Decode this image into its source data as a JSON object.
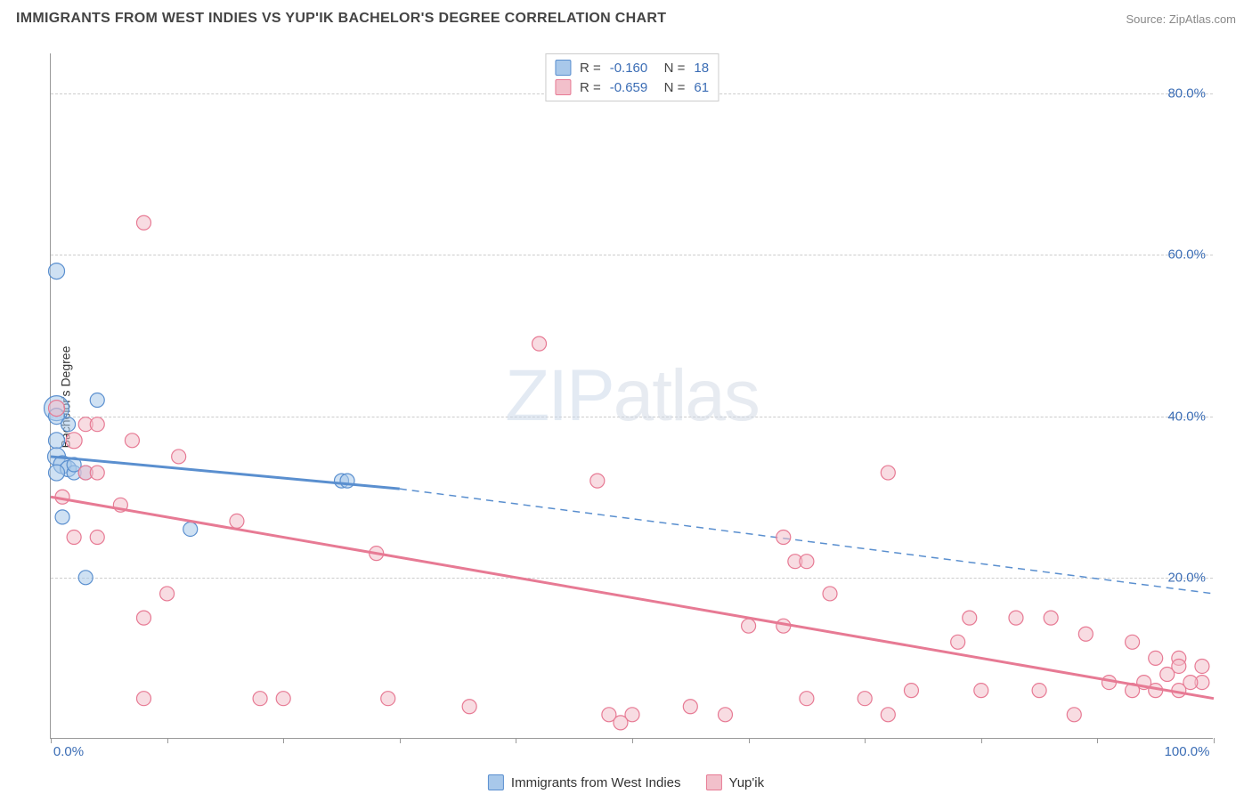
{
  "title": "IMMIGRANTS FROM WEST INDIES VS YUP'IK BACHELOR'S DEGREE CORRELATION CHART",
  "source": "Source: ZipAtlas.com",
  "watermark_bold": "ZIP",
  "watermark_thin": "atlas",
  "chart": {
    "type": "scatter",
    "ylabel": "Bachelor's Degree",
    "background_color": "#ffffff",
    "grid_color": "#cccccc",
    "axis_color": "#999999",
    "tick_color": "#3b6db5",
    "xlim": [
      0,
      100
    ],
    "ylim": [
      0,
      85
    ],
    "yticks": [
      20,
      40,
      60,
      80
    ],
    "ytick_labels": [
      "20.0%",
      "40.0%",
      "60.0%",
      "80.0%"
    ],
    "xticks_minor": [
      0,
      10,
      20,
      30,
      40,
      50,
      60,
      70,
      80,
      90,
      100
    ],
    "xtick_labels": {
      "0": "0.0%",
      "100": "100.0%"
    },
    "series": [
      {
        "name": "Immigrants from West Indies",
        "color_fill": "#a8c8ea",
        "color_stroke": "#5a8fcf",
        "marker_radius": 8,
        "R": "-0.160",
        "N": "18",
        "regression": {
          "x_start": 0,
          "y_start": 35,
          "x_end_solid": 30,
          "y_end_solid": 31,
          "x_end": 100,
          "y_end": 18,
          "stroke_width": 3
        },
        "points": [
          {
            "x": 0.5,
            "y": 58,
            "r": 9
          },
          {
            "x": 0.5,
            "y": 41,
            "r": 14
          },
          {
            "x": 0.5,
            "y": 40,
            "r": 9
          },
          {
            "x": 4,
            "y": 42,
            "r": 8
          },
          {
            "x": 1.5,
            "y": 39,
            "r": 8
          },
          {
            "x": 0.5,
            "y": 37,
            "r": 9
          },
          {
            "x": 0.5,
            "y": 35,
            "r": 10
          },
          {
            "x": 1,
            "y": 34,
            "r": 10
          },
          {
            "x": 1.5,
            "y": 33.5,
            "r": 9
          },
          {
            "x": 2,
            "y": 33,
            "r": 8
          },
          {
            "x": 3,
            "y": 33,
            "r": 8
          },
          {
            "x": 0.5,
            "y": 33,
            "r": 9
          },
          {
            "x": 1,
            "y": 27.5,
            "r": 8
          },
          {
            "x": 3,
            "y": 20,
            "r": 8
          },
          {
            "x": 12,
            "y": 26,
            "r": 8
          },
          {
            "x": 25,
            "y": 32,
            "r": 8
          },
          {
            "x": 25.5,
            "y": 32,
            "r": 8
          },
          {
            "x": 2,
            "y": 34,
            "r": 8
          }
        ]
      },
      {
        "name": "Yup'ik",
        "color_fill": "#f2c0cb",
        "color_stroke": "#e77a94",
        "marker_radius": 8,
        "R": "-0.659",
        "N": "61",
        "regression": {
          "x_start": 0,
          "y_start": 30,
          "x_end_solid": 100,
          "y_end_solid": 5,
          "x_end": 100,
          "y_end": 5,
          "stroke_width": 3
        },
        "points": [
          {
            "x": 8,
            "y": 64,
            "r": 8
          },
          {
            "x": 42,
            "y": 49,
            "r": 8
          },
          {
            "x": 0.5,
            "y": 41,
            "r": 9
          },
          {
            "x": 3,
            "y": 39,
            "r": 8
          },
          {
            "x": 4,
            "y": 39,
            "r": 8
          },
          {
            "x": 2,
            "y": 37,
            "r": 9
          },
          {
            "x": 7,
            "y": 37,
            "r": 8
          },
          {
            "x": 11,
            "y": 35,
            "r": 8
          },
          {
            "x": 3,
            "y": 33,
            "r": 8
          },
          {
            "x": 4,
            "y": 33,
            "r": 8
          },
          {
            "x": 72,
            "y": 33,
            "r": 8
          },
          {
            "x": 47,
            "y": 32,
            "r": 8
          },
          {
            "x": 1,
            "y": 30,
            "r": 8
          },
          {
            "x": 6,
            "y": 29,
            "r": 8
          },
          {
            "x": 2,
            "y": 25,
            "r": 8
          },
          {
            "x": 4,
            "y": 25,
            "r": 8
          },
          {
            "x": 16,
            "y": 27,
            "r": 8
          },
          {
            "x": 63,
            "y": 25,
            "r": 8
          },
          {
            "x": 28,
            "y": 23,
            "r": 8
          },
          {
            "x": 64,
            "y": 22,
            "r": 8
          },
          {
            "x": 65,
            "y": 22,
            "r": 8
          },
          {
            "x": 10,
            "y": 18,
            "r": 8
          },
          {
            "x": 67,
            "y": 18,
            "r": 8
          },
          {
            "x": 8,
            "y": 15,
            "r": 8
          },
          {
            "x": 60,
            "y": 14,
            "r": 8
          },
          {
            "x": 63,
            "y": 14,
            "r": 8
          },
          {
            "x": 79,
            "y": 15,
            "r": 8
          },
          {
            "x": 83,
            "y": 15,
            "r": 8
          },
          {
            "x": 86,
            "y": 15,
            "r": 8
          },
          {
            "x": 89,
            "y": 13,
            "r": 8
          },
          {
            "x": 78,
            "y": 12,
            "r": 8
          },
          {
            "x": 93,
            "y": 12,
            "r": 8
          },
          {
            "x": 97,
            "y": 10,
            "r": 8
          },
          {
            "x": 95,
            "y": 10,
            "r": 8
          },
          {
            "x": 97,
            "y": 9,
            "r": 8
          },
          {
            "x": 99,
            "y": 9,
            "r": 8
          },
          {
            "x": 96,
            "y": 8,
            "r": 8
          },
          {
            "x": 99,
            "y": 7,
            "r": 8
          },
          {
            "x": 91,
            "y": 7,
            "r": 8
          },
          {
            "x": 94,
            "y": 7,
            "r": 8
          },
          {
            "x": 98,
            "y": 7,
            "r": 8
          },
          {
            "x": 97,
            "y": 6,
            "r": 8
          },
          {
            "x": 93,
            "y": 6,
            "r": 8
          },
          {
            "x": 95,
            "y": 6,
            "r": 8
          },
          {
            "x": 85,
            "y": 6,
            "r": 8
          },
          {
            "x": 80,
            "y": 6,
            "r": 8
          },
          {
            "x": 74,
            "y": 6,
            "r": 8
          },
          {
            "x": 70,
            "y": 5,
            "r": 8
          },
          {
            "x": 65,
            "y": 5,
            "r": 8
          },
          {
            "x": 8,
            "y": 5,
            "r": 8
          },
          {
            "x": 18,
            "y": 5,
            "r": 8
          },
          {
            "x": 20,
            "y": 5,
            "r": 8
          },
          {
            "x": 29,
            "y": 5,
            "r": 8
          },
          {
            "x": 36,
            "y": 4,
            "r": 8
          },
          {
            "x": 48,
            "y": 3,
            "r": 8
          },
          {
            "x": 50,
            "y": 3,
            "r": 8
          },
          {
            "x": 55,
            "y": 4,
            "r": 8
          },
          {
            "x": 58,
            "y": 3,
            "r": 8
          },
          {
            "x": 49,
            "y": 2,
            "r": 8
          },
          {
            "x": 88,
            "y": 3,
            "r": 8
          },
          {
            "x": 72,
            "y": 3,
            "r": 8
          }
        ]
      }
    ]
  }
}
